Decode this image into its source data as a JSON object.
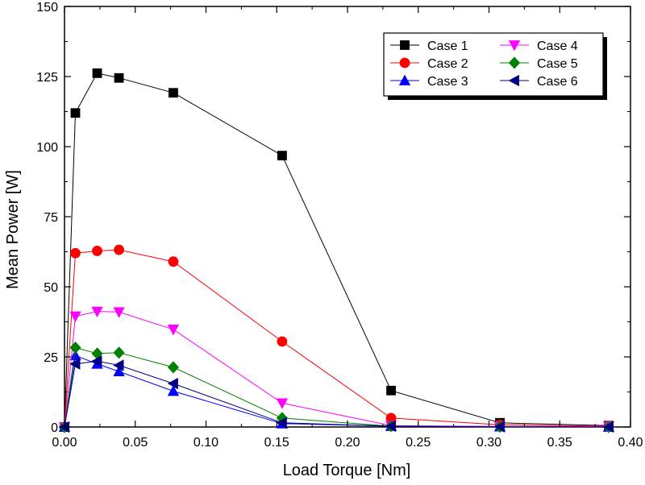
{
  "chart_data": {
    "type": "line",
    "title": "",
    "xlabel": "Load Torque [Nm]",
    "ylabel": "Mean Power [W]",
    "xlim": [
      0.0,
      0.4
    ],
    "ylim": [
      0,
      150
    ],
    "xticks": [
      0.0,
      0.05,
      0.1,
      0.15,
      0.2,
      0.25,
      0.3,
      0.35,
      0.4
    ],
    "xtick_labels": [
      "0.00",
      "0.05",
      "0.10",
      "0.15",
      "0.20",
      "0.25",
      "0.30",
      "0.35",
      "0.40"
    ],
    "yticks": [
      0,
      25,
      50,
      75,
      100,
      125,
      150
    ],
    "ytick_labels": [
      "0",
      "25",
      "50",
      "75",
      "100",
      "125",
      "150"
    ],
    "grid": false,
    "legend_position": "top-right",
    "x": [
      0.0,
      0.0077,
      0.0231,
      0.0385,
      0.0769,
      0.1538,
      0.2308,
      0.3077,
      0.3846
    ],
    "series": [
      {
        "name": "Case 1",
        "marker": "square",
        "color": "#000000",
        "values": [
          0,
          112,
          126.2,
          124.5,
          119.2,
          96.8,
          13,
          1.5,
          0.5
        ]
      },
      {
        "name": "Case 2",
        "marker": "circle",
        "color": "#ff0000",
        "values": [
          0,
          62,
          62.8,
          63.2,
          59,
          30.5,
          3.2,
          0.8,
          0.3
        ]
      },
      {
        "name": "Case 3",
        "marker": "triangle-up",
        "color": "#0000ff",
        "values": [
          0,
          25.5,
          22.5,
          19.8,
          12.8,
          1.2,
          0.3,
          0.1,
          0
        ]
      },
      {
        "name": "Case 4",
        "marker": "triangle-down",
        "color": "#ff00ff",
        "values": [
          0,
          39.5,
          41.2,
          41,
          34.8,
          8.5,
          0.5,
          0.2,
          0.2
        ]
      },
      {
        "name": "Case 5",
        "marker": "diamond",
        "color": "#008000",
        "values": [
          0,
          28.3,
          26.2,
          26.5,
          21.3,
          3.2,
          0.3,
          0.1,
          0
        ]
      },
      {
        "name": "Case 6",
        "marker": "triangle-left",
        "color": "#000080",
        "values": [
          0,
          22.5,
          23.5,
          22,
          15.5,
          1.5,
          0.3,
          0.1,
          0
        ]
      }
    ]
  }
}
